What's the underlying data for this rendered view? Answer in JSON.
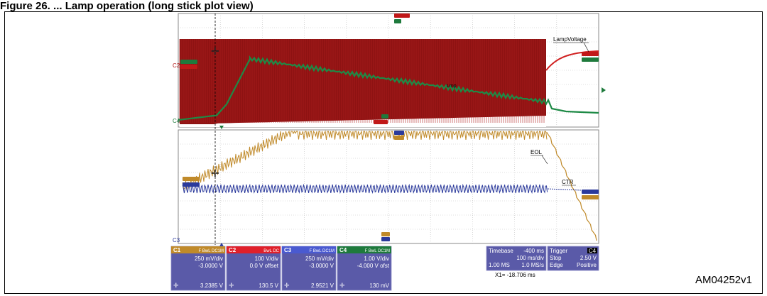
{
  "figure_caption": "Figure 26. ... Lamp operation (long stick plot view)",
  "reference_code": "AM04252v1",
  "colors": {
    "background": "#ffffff",
    "screen": "#ffffff",
    "grid": "#bfbfbf",
    "c1": "#c08a2a",
    "c2": "#9b1414",
    "c3": "#2b3a9c",
    "c4": "#1e7a3c",
    "panel": "#5a5aa8"
  },
  "chart_data": {
    "type": "line",
    "annotations": {
      "lamp_voltage": "LampVoltage",
      "eol": "EOL",
      "ctr": "CTR",
      "lamp_current": "Lmp"
    },
    "channel_markers": {
      "c2": "C2",
      "c4": "C4",
      "c3": "C3"
    },
    "channels": [
      {
        "id": "C1",
        "volts_div": "250 mV/div",
        "offset": "-3.0000 V",
        "value": "3.2385 V",
        "color": "#c08a2a",
        "tags": "F BwL DC1M"
      },
      {
        "id": "C2",
        "volts_div": "100 V/div",
        "offset": "0.0 V offset",
        "value": "130.5 V",
        "color": "#e0202a",
        "tags": "BwL DC"
      },
      {
        "id": "C3",
        "volts_div": "250 mV/div",
        "offset": "-3.0000 V",
        "value": "2.9521 V",
        "color": "#4a5ad0",
        "tags": "F BwL DC1M"
      },
      {
        "id": "C4",
        "volts_div": "1.00 V/div",
        "offset": "-4.000 V ofst",
        "value": "130 mV",
        "color": "#1e7a3c",
        "tags": "F BwL DC1M"
      }
    ],
    "timebase": {
      "label": "Timebase",
      "delay": "-400 ms",
      "time_div": "100 ms/div",
      "samples": "1.00 MS",
      "rate": "1.0 MS/s"
    },
    "trigger": {
      "label": "Trigger",
      "source": "C4",
      "mode": "Stop",
      "level": "2.50 V",
      "type": "Edge",
      "slope": "Positive"
    },
    "cursor": "X1= -18.706 ms"
  }
}
